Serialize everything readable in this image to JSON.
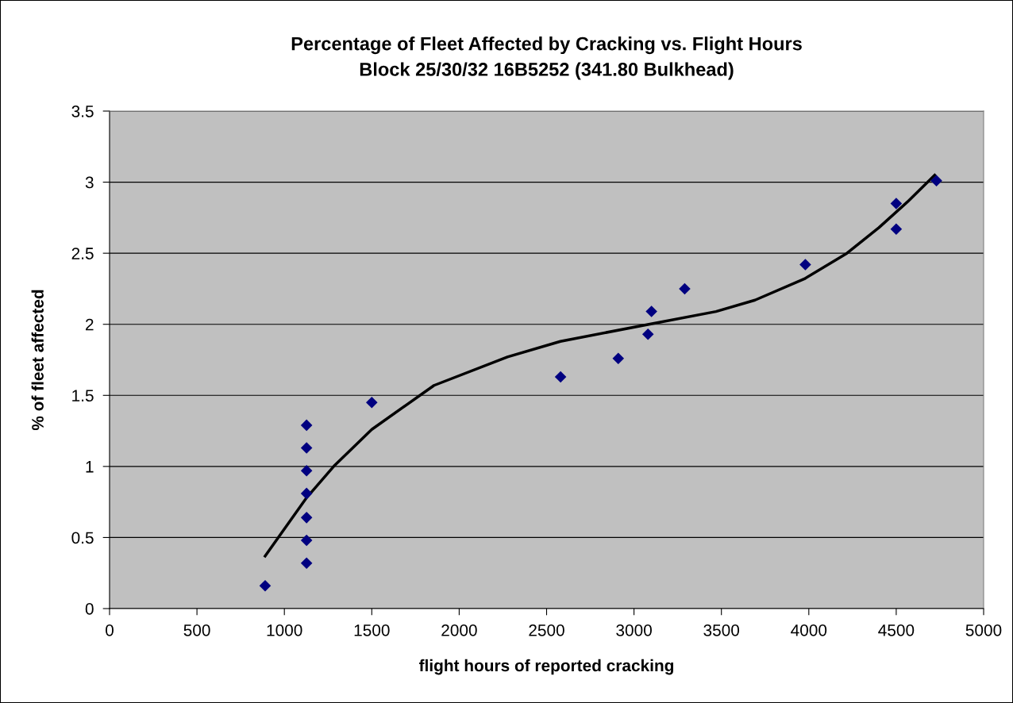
{
  "chart_data": {
    "type": "scatter",
    "title": "Percentage of Fleet Affected by Cracking vs. Flight Hours\nBlock 25/30/32 16B5252 (341.80 Bulkhead)",
    "xlabel": "flight hours of reported cracking",
    "ylabel": "% of fleet affected",
    "series": [
      {
        "color": "#000080",
        "marker": "diamond",
        "x": [
          890,
          1127,
          1127,
          1127,
          1127,
          1127,
          1127,
          1127,
          1500,
          2580,
          2910,
          3080,
          3100,
          3290,
          3980,
          4500,
          4500,
          4730
        ],
        "values": [
          0.16,
          0.32,
          0.48,
          0.64,
          0.81,
          0.97,
          1.13,
          1.29,
          1.45,
          1.63,
          1.76,
          1.93,
          2.09,
          2.25,
          2.42,
          2.85,
          2.67,
          3.01
        ]
      },
      {
        "type": "line",
        "color": "#000000",
        "marker": "none",
        "line_style": "solid",
        "x": [
          890,
          1127,
          1282,
          1500,
          1856,
          2276,
          2579,
          3085,
          3469,
          3692,
          3975,
          4218,
          4401,
          4563,
          4720
        ],
        "values": [
          0.37,
          0.78,
          1.0,
          1.26,
          1.57,
          1.77,
          1.88,
          2.0,
          2.09,
          2.17,
          2.32,
          2.5,
          2.68,
          2.86,
          3.05
        ]
      }
    ],
    "xlim": [
      0,
      5000
    ],
    "xticks": [
      0,
      500,
      1000,
      1500,
      2000,
      2500,
      3000,
      3500,
      4000,
      4500,
      5000
    ],
    "ylim": [
      0,
      3.5
    ],
    "yticks": [
      0,
      0.5,
      1,
      1.5,
      2,
      2.5,
      3,
      3.5
    ],
    "grid": "y",
    "legend": false
  }
}
